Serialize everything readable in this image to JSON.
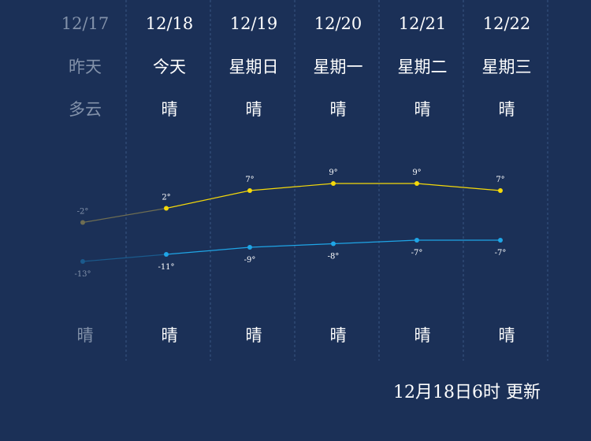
{
  "days": [
    {
      "date": "12/17",
      "weekday": "昨天",
      "day_weather": "多云",
      "night_weather": "晴",
      "high": "-2°",
      "low": "-13°",
      "past": true
    },
    {
      "date": "12/18",
      "weekday": "今天",
      "day_weather": "晴",
      "night_weather": "晴",
      "high": "2°",
      "low": "-11°",
      "past": false
    },
    {
      "date": "12/19",
      "weekday": "星期日",
      "day_weather": "晴",
      "night_weather": "晴",
      "high": "7°",
      "low": "-9°",
      "past": false
    },
    {
      "date": "12/20",
      "weekday": "星期一",
      "day_weather": "晴",
      "night_weather": "晴",
      "high": "9°",
      "low": "-8°",
      "past": false
    },
    {
      "date": "12/21",
      "weekday": "星期二",
      "day_weather": "晴",
      "night_weather": "晴",
      "high": "9°",
      "low": "-7°",
      "past": false
    },
    {
      "date": "12/22",
      "weekday": "星期三",
      "day_weather": "晴",
      "night_weather": "晴",
      "high": "7°",
      "low": "-7°",
      "past": false
    }
  ],
  "chart_data": {
    "type": "line",
    "x": [
      "12/17",
      "12/18",
      "12/19",
      "12/20",
      "12/21",
      "12/22"
    ],
    "series": [
      {
        "values": [
          -2,
          2,
          7,
          9,
          9,
          7
        ]
      },
      {
        "values": [
          -13,
          -11,
          -9,
          -8,
          -7,
          -7
        ]
      }
    ],
    "colors": {
      "high": "#f5d90a",
      "low": "#1fa5e6",
      "past_high": "#6e6d52",
      "past_low": "#1b5a8c"
    }
  },
  "footer": {
    "update_text": "12月18日6时 更新"
  }
}
